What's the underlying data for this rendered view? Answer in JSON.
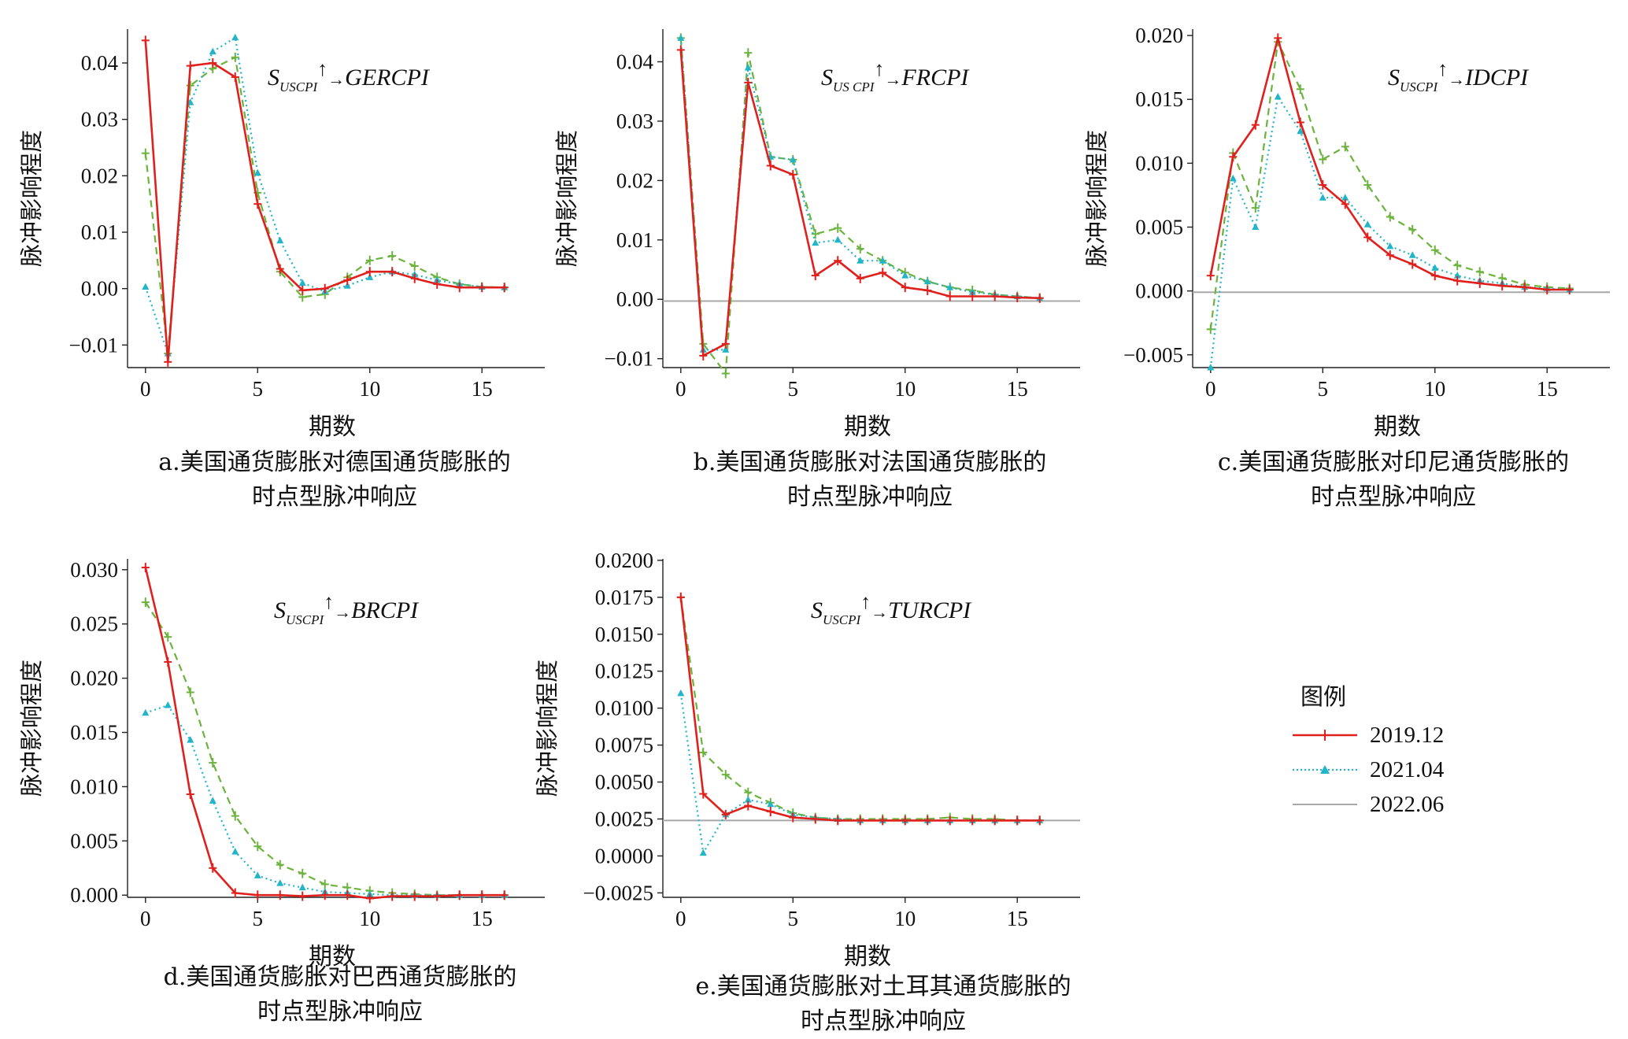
{
  "legend": {
    "title": "图例",
    "series": [
      {
        "name": "2019.12",
        "color": "#e0201c",
        "style": "solid-plus"
      },
      {
        "name": "2021.04",
        "color": "#22b5c8",
        "style": "dotted-triangle"
      },
      {
        "name": "2022.06",
        "color": "#a8a8a8",
        "style": "solid-thin"
      }
    ]
  },
  "chart_data": [
    {
      "id": "a",
      "type": "line",
      "title_main": "S",
      "title_sub": "USCPI",
      "title_tail": "GERCPI",
      "ylabel": "脉冲影响程度",
      "xlabel": "期数",
      "caption_line1": "a.美国通货膨胀对德国通货膨胀的",
      "caption_line2": "时点型脉冲响应",
      "xlim": [
        -0.8,
        17.8
      ],
      "ylim": [
        -0.014,
        0.046
      ],
      "xticks": [
        0,
        5,
        10,
        15
      ],
      "xtick_labels": [
        "0",
        "5",
        "10",
        "15"
      ],
      "yticks": [
        -0.01,
        0.0,
        0.01,
        0.02,
        0.03,
        0.04
      ],
      "ytick_labels": [
        "−0.01",
        "0.00",
        "0.01",
        "0.02",
        "0.03",
        "0.04"
      ],
      "x": [
        0,
        1,
        2,
        3,
        4,
        5,
        6,
        7,
        8,
        9,
        10,
        11,
        12,
        13,
        14,
        15,
        16
      ],
      "series": [
        {
          "name": "2019.12",
          "values": [
            0.044,
            -0.013,
            0.0395,
            0.04,
            0.0375,
            0.015,
            0.0035,
            -0.0003,
            0.0,
            0.0015,
            0.003,
            0.003,
            0.0018,
            0.0008,
            0.0002,
            0.0002,
            0.0002
          ]
        },
        {
          "name": "2021.04",
          "values": [
            0.0003,
            -0.0115,
            0.033,
            0.042,
            0.0445,
            0.0205,
            0.0085,
            0.001,
            -0.0005,
            0.0005,
            0.002,
            0.003,
            0.0025,
            0.0015,
            0.0008,
            0.0003,
            0.0002
          ]
        },
        {
          "name": "2022.06",
          "values": [
            0.024,
            -0.0115,
            0.036,
            0.039,
            0.041,
            0.017,
            0.003,
            -0.0015,
            -0.001,
            0.002,
            0.005,
            0.0058,
            0.004,
            0.002,
            0.0008,
            0.0003,
            0.0002
          ]
        }
      ]
    },
    {
      "id": "b",
      "type": "line",
      "title_main": "S",
      "title_sub": "US CPI",
      "title_tail": "FRCPI",
      "ylabel": "脉冲影响程度",
      "xlabel": "期数",
      "caption_line1": "b.美国通货膨胀对法国通货膨胀的",
      "caption_line2": "时点型脉冲响应",
      "xlim": [
        -0.8,
        17.8
      ],
      "ylim": [
        -0.0115,
        0.0455
      ],
      "xticks": [
        0,
        5,
        10,
        15
      ],
      "xtick_labels": [
        "0",
        "5",
        "10",
        "15"
      ],
      "yticks": [
        -0.01,
        0.0,
        0.01,
        0.02,
        0.03,
        0.04
      ],
      "ytick_labels": [
        "−0.01",
        "0.00",
        "0.01",
        "0.02",
        "0.03",
        "0.04"
      ],
      "baseline": -0.0003,
      "x": [
        0,
        1,
        2,
        3,
        4,
        5,
        6,
        7,
        8,
        9,
        10,
        11,
        12,
        13,
        14,
        15,
        16
      ],
      "series": [
        {
          "name": "2019.12",
          "values": [
            0.042,
            -0.0095,
            -0.0075,
            0.0365,
            0.0225,
            0.021,
            0.004,
            0.0065,
            0.0035,
            0.0045,
            0.002,
            0.0015,
            0.0005,
            0.0005,
            0.0005,
            0.0003,
            0.0002
          ]
        },
        {
          "name": "2021.04",
          "values": [
            0.044,
            -0.0085,
            -0.0085,
            0.039,
            0.024,
            0.0235,
            0.0095,
            0.01,
            0.0065,
            0.0065,
            0.004,
            0.003,
            0.002,
            0.0012,
            0.0008,
            0.0005,
            0.0002
          ]
        },
        {
          "name": "2022.06",
          "values": [
            0.044,
            -0.0075,
            -0.0125,
            0.0415,
            0.024,
            0.0235,
            0.011,
            0.012,
            0.0085,
            0.0065,
            0.0045,
            0.003,
            0.002,
            0.0015,
            0.0008,
            0.0005,
            0.0002
          ]
        }
      ]
    },
    {
      "id": "c",
      "type": "line",
      "title_main": "S",
      "title_sub": "USCPI",
      "title_tail": "IDCPI",
      "ylabel": "脉冲影响程度",
      "xlabel": "期数",
      "caption_line1": "c.美国通货膨胀对印尼通货膨胀的",
      "caption_line2": "时点型脉冲响应",
      "xlim": [
        -0.8,
        17.8
      ],
      "ylim": [
        -0.006,
        0.0205
      ],
      "xticks": [
        0,
        5,
        10,
        15
      ],
      "xtick_labels": [
        "0",
        "5",
        "10",
        "15"
      ],
      "yticks": [
        -0.005,
        0.0,
        0.005,
        0.01,
        0.015,
        0.02
      ],
      "ytick_labels": [
        "−0.005",
        "0.000",
        "0.005",
        "0.010",
        "0.015",
        "0.020"
      ],
      "baseline": -0.0001,
      "x": [
        0,
        1,
        2,
        3,
        4,
        5,
        6,
        7,
        8,
        9,
        10,
        11,
        12,
        13,
        14,
        15,
        16
      ],
      "series": [
        {
          "name": "2019.12",
          "values": [
            0.0012,
            0.0105,
            0.013,
            0.0198,
            0.0132,
            0.0083,
            0.0068,
            0.0042,
            0.0028,
            0.0021,
            0.0012,
            0.0008,
            0.0006,
            0.0004,
            0.0003,
            0.0001,
            0.0001
          ]
        },
        {
          "name": "2021.04",
          "values": [
            -0.006,
            0.0088,
            0.005,
            0.0152,
            0.0125,
            0.0073,
            0.0073,
            0.0052,
            0.0035,
            0.0028,
            0.0018,
            0.0012,
            0.0008,
            0.0006,
            0.0003,
            0.0002,
            0.0001
          ]
        },
        {
          "name": "2022.06",
          "values": [
            -0.003,
            0.0108,
            0.0065,
            0.0195,
            0.0158,
            0.0103,
            0.0113,
            0.0083,
            0.0058,
            0.0048,
            0.0032,
            0.002,
            0.0015,
            0.001,
            0.0005,
            0.0003,
            0.0002
          ]
        }
      ]
    },
    {
      "id": "d",
      "type": "line",
      "title_main": "S",
      "title_sub": "USCPI",
      "title_tail": "BRCPI",
      "ylabel": "脉冲影响程度",
      "xlabel": "期数",
      "caption_line1": "d.美国通货膨胀对巴西通货膨胀的",
      "caption_line2": "时点型脉冲响应",
      "xlim": [
        -0.8,
        17.8
      ],
      "ylim": [
        -0.0002,
        0.031
      ],
      "xticks": [
        0,
        5,
        10,
        15
      ],
      "xtick_labels": [
        "0",
        "5",
        "10",
        "15"
      ],
      "yticks": [
        0.0,
        0.005,
        0.01,
        0.015,
        0.02,
        0.025,
        0.03
      ],
      "ytick_labels": [
        "0.000",
        "0.005",
        "0.010",
        "0.015",
        "0.020",
        "0.025",
        "0.030"
      ],
      "x": [
        0,
        1,
        2,
        3,
        4,
        5,
        6,
        7,
        8,
        9,
        10,
        11,
        12,
        13,
        14,
        15,
        16
      ],
      "series": [
        {
          "name": "2019.12",
          "values": [
            0.0302,
            0.0215,
            0.0093,
            0.0025,
            0.0002,
            0.0,
            0.0,
            -0.0001,
            0.0,
            0.0,
            -0.0003,
            -0.0001,
            -0.0001,
            -0.0001,
            0.0,
            0.0,
            0.0
          ]
        },
        {
          "name": "2021.04",
          "values": [
            0.0168,
            0.0175,
            0.0143,
            0.0087,
            0.004,
            0.0018,
            0.0011,
            0.0007,
            0.0003,
            0.0002,
            0.0001,
            0.0,
            0.0,
            0.0,
            0.0,
            0.0,
            0.0
          ]
        },
        {
          "name": "2022.06",
          "values": [
            0.027,
            0.0238,
            0.0187,
            0.0122,
            0.0073,
            0.0045,
            0.0028,
            0.002,
            0.001,
            0.0007,
            0.0004,
            0.0002,
            0.0001,
            0.0,
            0.0,
            0.0,
            0.0
          ]
        }
      ]
    },
    {
      "id": "e",
      "type": "line",
      "title_main": "S",
      "title_sub": "USCPI",
      "title_tail": "TURCPI",
      "ylabel": "脉冲影响程度",
      "xlabel": "期数",
      "caption_line1": "e.美国通货膨胀对土耳其通货膨胀的",
      "caption_line2": "时点型脉冲响应",
      "xlim": [
        -0.8,
        17.8
      ],
      "ylim": [
        -0.0028,
        0.0201
      ],
      "xticks": [
        0,
        5,
        10,
        15
      ],
      "xtick_labels": [
        "0",
        "5",
        "10",
        "15"
      ],
      "yticks": [
        -0.0025,
        0.0,
        0.0025,
        0.005,
        0.0075,
        0.01,
        0.0125,
        0.015,
        0.0175,
        0.02
      ],
      "ytick_labels": [
        "−0.0025",
        "0.0000",
        "0.0025",
        "0.0050",
        "0.0075",
        "0.0100",
        "0.0125",
        "0.0150",
        "0.0175",
        "0.0200"
      ],
      "baseline": 0.0024,
      "x": [
        0,
        1,
        2,
        3,
        4,
        5,
        6,
        7,
        8,
        9,
        10,
        11,
        12,
        13,
        14,
        15,
        16
      ],
      "series": [
        {
          "name": "2019.12",
          "values": [
            0.0175,
            0.0042,
            0.0028,
            0.0034,
            0.003,
            0.0026,
            0.0025,
            0.0024,
            0.0024,
            0.0024,
            0.0024,
            0.0024,
            0.0024,
            0.0024,
            0.0024,
            0.0024,
            0.0024
          ]
        },
        {
          "name": "2021.04",
          "values": [
            0.011,
            0.0002,
            0.0028,
            0.0038,
            0.0035,
            0.0028,
            0.0026,
            0.0025,
            0.0024,
            0.0024,
            0.0024,
            0.0024,
            0.0024,
            0.0024,
            0.0024,
            0.0024,
            0.0024
          ]
        },
        {
          "name": "2022.06",
          "values": [
            0.0175,
            0.007,
            0.0055,
            0.0043,
            0.0036,
            0.0029,
            0.0026,
            0.0025,
            0.0025,
            0.0025,
            0.0025,
            0.0025,
            0.0026,
            0.0025,
            0.0025,
            0.0024,
            0.0024
          ]
        }
      ]
    }
  ]
}
